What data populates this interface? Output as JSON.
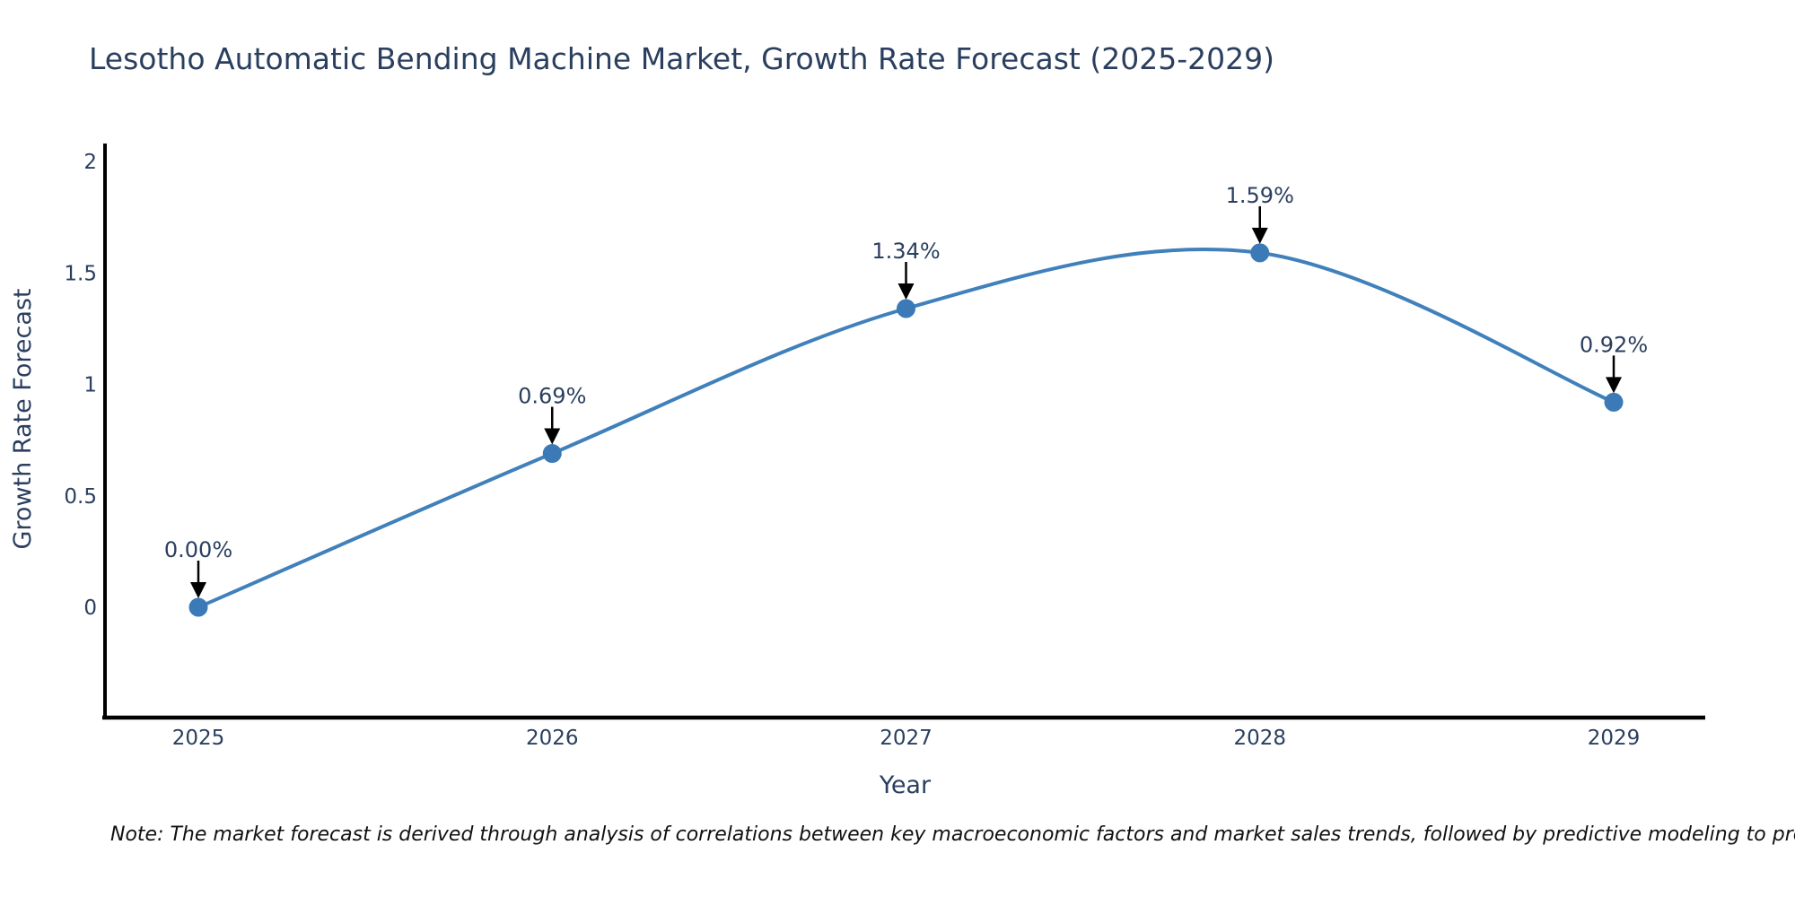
{
  "note": "Note: The market forecast is derived through analysis of correlations between key macroeconomic factors and market sales trends, followed by predictive modeling to project future sales",
  "chart_data": {
    "type": "line",
    "line_shape": "spline",
    "title": "Lesotho Automatic Bending Machine Market, Growth Rate Forecast (2025-2029)",
    "xlabel": "Year",
    "ylabel": "Growth Rate Forecast",
    "categories": [
      2025,
      2026,
      2027,
      2028,
      2029
    ],
    "values": [
      0.0,
      0.69,
      1.34,
      1.59,
      0.92
    ],
    "point_labels": [
      "0.00%",
      "0.69%",
      "1.34%",
      "1.59%",
      "0.92%"
    ],
    "xtick_labels": [
      "2025",
      "2026",
      "2027",
      "2028",
      "2029"
    ],
    "ytick_values": [
      0,
      0.5,
      1,
      1.5,
      2
    ],
    "ytick_labels": [
      "0",
      "0.5",
      "1",
      "1.5",
      "2"
    ],
    "ylim": [
      -0.5,
      2.08
    ],
    "grid": false,
    "legend": "none",
    "background_color": "#ffffff",
    "line_color": "#4080bb",
    "marker_color": "#3b79b7",
    "axis_color": "#000000",
    "text_color": "#2a3f5f",
    "annotation_arrow_color": "#000000"
  }
}
